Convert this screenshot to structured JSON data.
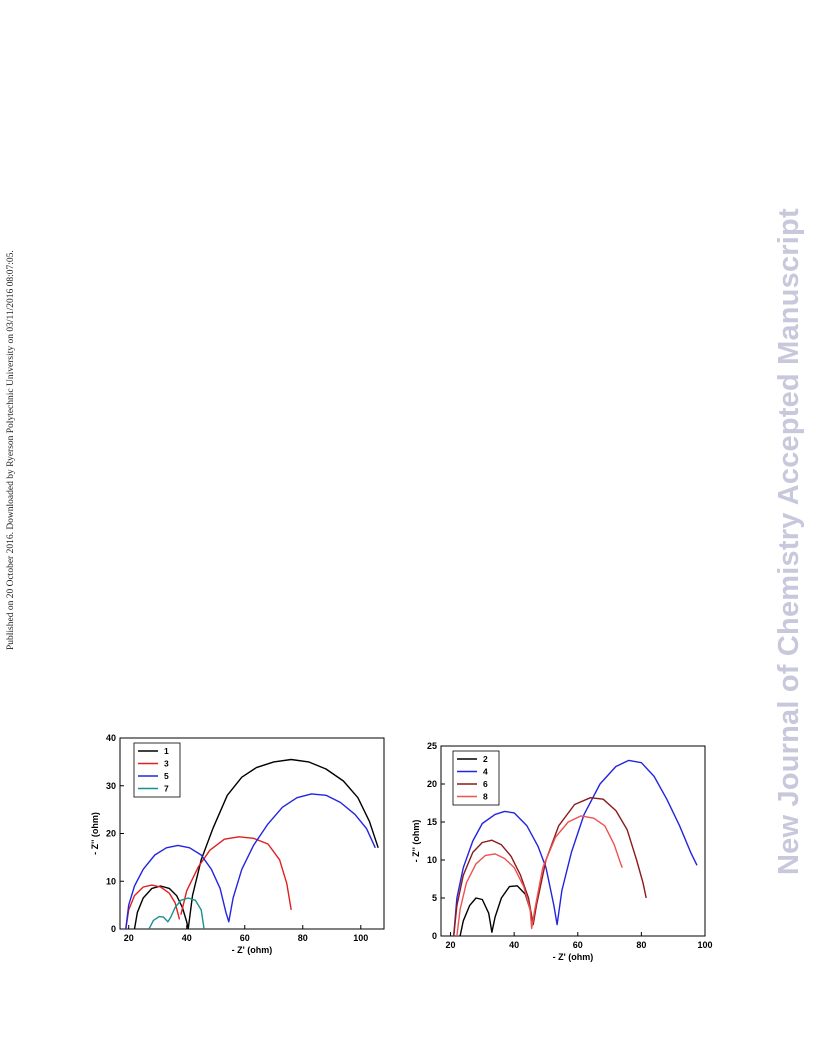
{
  "side_note": "Published on 20 October 2016. Downloaded by Ryerson Polytechnic University on 03/11/2016 08:07:05.",
  "watermark": "New Journal of Chemistry Accepted Manuscript",
  "chart_data": [
    {
      "type": "line",
      "xlabel": "- Z' (ohm)",
      "ylabel": "- Z'' (ohm)",
      "xlim": [
        17,
        108
      ],
      "ylim": [
        0,
        40
      ],
      "xticks": [
        20,
        40,
        60,
        80,
        100
      ],
      "yticks": [
        0,
        10,
        20,
        30,
        40
      ],
      "legend_position": "top-left",
      "series": [
        {
          "name": "1",
          "color": "#000000",
          "points": [
            [
              22,
              0
            ],
            [
              23,
              3.5
            ],
            [
              25,
              6.5
            ],
            [
              28,
              8.5
            ],
            [
              31,
              9
            ],
            [
              34,
              8.5
            ],
            [
              36.5,
              7
            ],
            [
              38.5,
              4.5
            ],
            [
              40,
              1.5
            ],
            [
              40.5,
              0
            ],
            [
              42,
              7
            ],
            [
              45,
              14.5
            ],
            [
              49,
              21
            ],
            [
              54,
              28
            ],
            [
              59,
              31.8
            ],
            [
              64,
              33.8
            ],
            [
              70,
              35
            ],
            [
              76,
              35.5
            ],
            [
              82,
              35
            ],
            [
              88,
              33.5
            ],
            [
              94,
              31
            ],
            [
              99,
              27.5
            ],
            [
              103,
              22.5
            ],
            [
              106,
              17
            ]
          ]
        },
        {
          "name": "3",
          "color": "#e02020",
          "points": [
            [
              19,
              0
            ],
            [
              20,
              4
            ],
            [
              22,
              7
            ],
            [
              25,
              8.8
            ],
            [
              28,
              9.2
            ],
            [
              31,
              8.8
            ],
            [
              34,
              7.5
            ],
            [
              36,
              5.5
            ],
            [
              37.5,
              2
            ]
          ],
          "segments": [
            [
              [
                38,
                3
              ],
              [
                40,
                8
              ],
              [
                44,
                13
              ],
              [
                48,
                16.5
              ],
              [
                53,
                18.8
              ],
              [
                58,
                19.3
              ],
              [
                63,
                19
              ],
              [
                68,
                17.8
              ],
              [
                72,
                14.5
              ],
              [
                74.5,
                9.5
              ],
              [
                76,
                4
              ]
            ]
          ]
        },
        {
          "name": "5",
          "color": "#2424e0",
          "points": [
            [
              19,
              0
            ],
            [
              20,
              5
            ],
            [
              22,
              9
            ],
            [
              25,
              12.5
            ],
            [
              29,
              15.5
            ],
            [
              33,
              17
            ],
            [
              37,
              17.5
            ],
            [
              41,
              17
            ],
            [
              45,
              15.5
            ],
            [
              48.5,
              12.5
            ],
            [
              51.5,
              8.5
            ],
            [
              53.5,
              3.5
            ],
            [
              54.5,
              1.5
            ],
            [
              56,
              6.5
            ],
            [
              59,
              12.5
            ],
            [
              63,
              17.5
            ],
            [
              68,
              22
            ],
            [
              73,
              25.5
            ],
            [
              78,
              27.5
            ],
            [
              83,
              28.3
            ],
            [
              88,
              28
            ],
            [
              93,
              26.5
            ],
            [
              98,
              24
            ],
            [
              102,
              21
            ],
            [
              105,
              17
            ]
          ]
        },
        {
          "name": "7",
          "color": "#1a9090",
          "points": [
            [
              27,
              0
            ],
            [
              28.5,
              1.8
            ],
            [
              30.5,
              2.6
            ],
            [
              32,
              2.5
            ],
            [
              33.5,
              1.5
            ],
            [
              34.5,
              2.5
            ],
            [
              36,
              4.5
            ],
            [
              38,
              6
            ],
            [
              40.5,
              6.5
            ],
            [
              43,
              6
            ],
            [
              45,
              4
            ],
            [
              46,
              0
            ]
          ]
        }
      ]
    },
    {
      "type": "line",
      "xlabel": "- Z' (ohm)",
      "ylabel": "- Z'' (ohm)",
      "xlim": [
        17,
        100
      ],
      "ylim": [
        0,
        25
      ],
      "xticks": [
        20,
        40,
        60,
        80,
        100
      ],
      "yticks": [
        0,
        5,
        10,
        15,
        20,
        25
      ],
      "legend_position": "top-left",
      "series": [
        {
          "name": "2",
          "color": "#000000",
          "points": [
            [
              23,
              0
            ],
            [
              24,
              2
            ],
            [
              26,
              4
            ],
            [
              28,
              5
            ],
            [
              30,
              4.8
            ],
            [
              32,
              3
            ],
            [
              33,
              0.5
            ],
            [
              34,
              2.5
            ],
            [
              36,
              5
            ],
            [
              38.5,
              6.5
            ],
            [
              41,
              6.6
            ],
            [
              43.5,
              5.5
            ],
            [
              45,
              3.5
            ],
            [
              46,
              1.5
            ]
          ]
        },
        {
          "name": "4",
          "color": "#2424e0",
          "points": [
            [
              21,
              0
            ],
            [
              22,
              5
            ],
            [
              24,
              9
            ],
            [
              27,
              12.5
            ],
            [
              30,
              14.8
            ],
            [
              34,
              16
            ],
            [
              37,
              16.4
            ],
            [
              40,
              16.2
            ],
            [
              44,
              14.5
            ],
            [
              47.5,
              11.8
            ],
            [
              50,
              9
            ],
            [
              52.5,
              4
            ],
            [
              53.5,
              1.5
            ],
            [
              55,
              6
            ],
            [
              58,
              11
            ],
            [
              62,
              16
            ],
            [
              67,
              20
            ],
            [
              72,
              22.3
            ],
            [
              76,
              23.1
            ],
            [
              80,
              22.8
            ],
            [
              84,
              21
            ],
            [
              88,
              18
            ],
            [
              92,
              14.5
            ],
            [
              95.5,
              11
            ],
            [
              97.5,
              9.3
            ]
          ]
        },
        {
          "name": "6",
          "color": "#8b1a1a",
          "points": [
            [
              21,
              0
            ],
            [
              22,
              4
            ],
            [
              24,
              8
            ],
            [
              27,
              11
            ],
            [
              30,
              12.3
            ],
            [
              33,
              12.6
            ],
            [
              36,
              12
            ],
            [
              39,
              10.5
            ],
            [
              42,
              8
            ],
            [
              44.5,
              5
            ],
            [
              46,
              1.5
            ],
            [
              47,
              4
            ],
            [
              50,
              10
            ],
            [
              54,
              14.5
            ],
            [
              59,
              17.3
            ],
            [
              64,
              18.2
            ],
            [
              68,
              18
            ],
            [
              72,
              16.5
            ],
            [
              75.5,
              14
            ],
            [
              78.5,
              10
            ],
            [
              80.5,
              7
            ],
            [
              81.5,
              5
            ]
          ]
        },
        {
          "name": "8",
          "color": "#f05050",
          "points": [
            [
              22,
              0
            ],
            [
              23,
              3.5
            ],
            [
              25,
              7
            ],
            [
              28,
              9.5
            ],
            [
              31,
              10.6
            ],
            [
              34,
              10.8
            ],
            [
              37,
              10.2
            ],
            [
              40,
              9
            ],
            [
              43,
              6.5
            ],
            [
              45,
              3.5
            ],
            [
              45.5,
              1
            ],
            [
              46.5,
              3.5
            ],
            [
              49,
              9
            ],
            [
              53,
              13
            ],
            [
              57,
              15
            ],
            [
              61,
              15.8
            ],
            [
              65,
              15.5
            ],
            [
              68.5,
              14.5
            ],
            [
              71.5,
              12
            ],
            [
              73.5,
              9.5
            ],
            [
              74,
              9
            ]
          ]
        }
      ]
    }
  ]
}
